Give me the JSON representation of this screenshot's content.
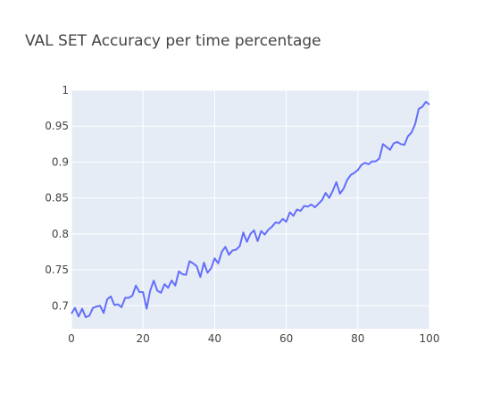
{
  "chart_data": {
    "type": "line",
    "title": "VAL SET Accuracy per time percentage",
    "xlabel": "",
    "ylabel": "",
    "xlim": [
      0,
      100
    ],
    "ylim": [
      0.668,
      1.0
    ],
    "x_ticks": [
      0,
      20,
      40,
      60,
      80,
      100
    ],
    "y_ticks": [
      0.7,
      0.75,
      0.8,
      0.85,
      0.9,
      0.95,
      1
    ],
    "x_tick_labels": [
      "0",
      "20",
      "40",
      "60",
      "80",
      "100"
    ],
    "y_tick_labels": [
      "0.7",
      "0.75",
      "0.8",
      "0.85",
      "0.9",
      "0.95",
      "1"
    ],
    "grid": true,
    "legend": "none",
    "colors": {
      "line": "#636efa",
      "plot_bg": "#e5ecf6",
      "grid": "#ffffff",
      "text": "#444444"
    },
    "series": [
      {
        "x": [
          0,
          1,
          2,
          3,
          4,
          5,
          6,
          7,
          8,
          9,
          10,
          11,
          12,
          13,
          14,
          15,
          16,
          17,
          18,
          19,
          20,
          21,
          22,
          23,
          24,
          25,
          26,
          27,
          28,
          29,
          30,
          31,
          32,
          33,
          34,
          35,
          36,
          37,
          38,
          39,
          40,
          41,
          42,
          43,
          44,
          45,
          46,
          47,
          48,
          49,
          50,
          51,
          52,
          53,
          54,
          55,
          56,
          57,
          58,
          59,
          60,
          61,
          62,
          63,
          64,
          65,
          66,
          67,
          68,
          69,
          70,
          71,
          72,
          73,
          74,
          75,
          76,
          77,
          78,
          79,
          80,
          81,
          82,
          83,
          84,
          85,
          86,
          87,
          88,
          89,
          90,
          91,
          92,
          93,
          94,
          95,
          96,
          97,
          98,
          99,
          100
        ],
        "y": [
          0.689,
          0.697,
          0.685,
          0.696,
          0.684,
          0.686,
          0.697,
          0.699,
          0.7,
          0.69,
          0.709,
          0.713,
          0.701,
          0.702,
          0.698,
          0.711,
          0.711,
          0.714,
          0.728,
          0.719,
          0.719,
          0.696,
          0.721,
          0.735,
          0.721,
          0.718,
          0.73,
          0.725,
          0.735,
          0.728,
          0.748,
          0.744,
          0.743,
          0.762,
          0.759,
          0.755,
          0.74,
          0.76,
          0.746,
          0.752,
          0.766,
          0.759,
          0.775,
          0.782,
          0.771,
          0.777,
          0.778,
          0.783,
          0.802,
          0.789,
          0.8,
          0.805,
          0.79,
          0.804,
          0.799,
          0.806,
          0.81,
          0.816,
          0.815,
          0.821,
          0.817,
          0.83,
          0.825,
          0.834,
          0.832,
          0.839,
          0.838,
          0.841,
          0.837,
          0.842,
          0.847,
          0.857,
          0.85,
          0.86,
          0.872,
          0.856,
          0.863,
          0.875,
          0.882,
          0.885,
          0.889,
          0.896,
          0.899,
          0.897,
          0.901,
          0.901,
          0.905,
          0.925,
          0.921,
          0.917,
          0.926,
          0.928,
          0.925,
          0.924,
          0.936,
          0.941,
          0.953,
          0.974,
          0.977,
          0.984,
          0.98
        ]
      }
    ]
  }
}
